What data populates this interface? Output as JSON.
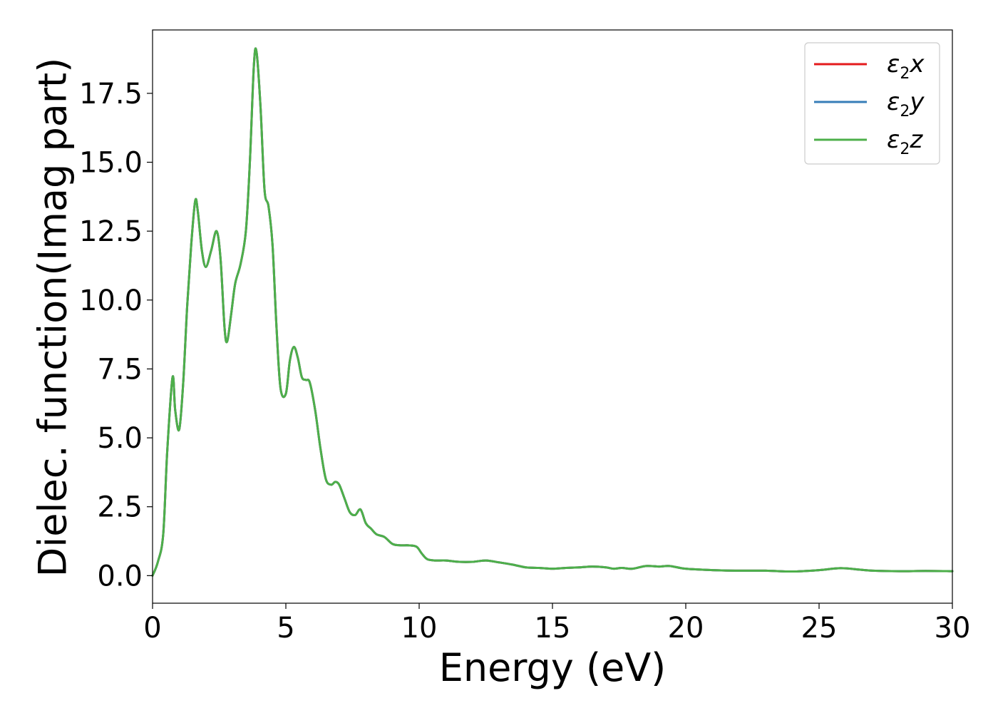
{
  "chart_data": {
    "type": "line",
    "title": "",
    "xlabel": "Energy (eV)",
    "ylabel": "Dielec. function(Imag part)",
    "xlim": [
      0,
      30
    ],
    "ylim": [
      -1.0,
      19.8
    ],
    "xticks": [
      0,
      5,
      10,
      15,
      20,
      25,
      30
    ],
    "xtick_labels": [
      "0",
      "5",
      "10",
      "15",
      "20",
      "25",
      "30"
    ],
    "yticks": [
      0,
      2.5,
      5,
      7.5,
      10,
      12.5,
      15,
      17.5
    ],
    "ytick_labels": [
      "0.0",
      "2.5",
      "5.0",
      "7.5",
      "10.0",
      "12.5",
      "15.0",
      "17.5"
    ],
    "grid": false,
    "legend_position": "top-right",
    "series": [
      {
        "name": "ε2x",
        "label_main": "ε",
        "label_sub": "2",
        "label_suffix": "x",
        "color": "#e41a1c",
        "x": [
          0,
          0.2,
          0.4,
          0.55,
          0.75,
          0.85,
          1.0,
          1.15,
          1.3,
          1.45,
          1.6,
          1.7,
          1.85,
          2.0,
          2.2,
          2.4,
          2.55,
          2.7,
          2.8,
          2.95,
          3.1,
          3.3,
          3.5,
          3.65,
          3.8,
          3.9,
          4.05,
          4.2,
          4.35,
          4.5,
          4.65,
          4.8,
          5.0,
          5.15,
          5.3,
          5.45,
          5.6,
          5.75,
          5.9,
          6.1,
          6.3,
          6.5,
          6.7,
          6.85,
          7.0,
          7.2,
          7.4,
          7.6,
          7.8,
          8.0,
          8.2,
          8.4,
          8.7,
          9.0,
          9.3,
          9.6,
          9.9,
          10.1,
          10.3,
          10.6,
          11.0,
          11.5,
          12.0,
          12.5,
          13.0,
          13.5,
          14.0,
          14.5,
          15.0,
          15.5,
          16.0,
          16.5,
          17.0,
          17.3,
          17.6,
          18.0,
          18.5,
          19.0,
          19.4,
          20.0,
          21.0,
          22.0,
          23.0,
          24.0,
          25.0,
          25.8,
          26.5,
          27.0,
          28.0,
          29.0,
          30.0
        ],
        "y": [
          0.0,
          0.5,
          1.5,
          4.5,
          7.2,
          6.0,
          5.3,
          7.0,
          9.8,
          12.0,
          13.6,
          13.2,
          11.8,
          11.2,
          11.8,
          12.5,
          11.5,
          9.0,
          8.5,
          9.5,
          10.6,
          11.3,
          12.5,
          15.0,
          18.5,
          19.0,
          17.0,
          14.0,
          13.4,
          12.0,
          9.0,
          6.8,
          6.6,
          7.8,
          8.3,
          7.9,
          7.2,
          7.1,
          7.0,
          6.0,
          4.6,
          3.5,
          3.3,
          3.4,
          3.3,
          2.8,
          2.3,
          2.2,
          2.4,
          1.9,
          1.7,
          1.5,
          1.4,
          1.15,
          1.1,
          1.1,
          1.05,
          0.8,
          0.6,
          0.55,
          0.55,
          0.5,
          0.5,
          0.55,
          0.48,
          0.4,
          0.3,
          0.28,
          0.25,
          0.28,
          0.3,
          0.33,
          0.3,
          0.25,
          0.28,
          0.25,
          0.35,
          0.33,
          0.35,
          0.25,
          0.2,
          0.18,
          0.18,
          0.15,
          0.2,
          0.27,
          0.22,
          0.18,
          0.16,
          0.17,
          0.16
        ]
      },
      {
        "name": "ε2y",
        "label_main": "ε",
        "label_sub": "2",
        "label_suffix": "y",
        "color": "#377eb8",
        "x": [
          0,
          0.2,
          0.4,
          0.55,
          0.75,
          0.85,
          1.0,
          1.15,
          1.3,
          1.45,
          1.6,
          1.7,
          1.85,
          2.0,
          2.2,
          2.4,
          2.55,
          2.7,
          2.8,
          2.95,
          3.1,
          3.3,
          3.5,
          3.65,
          3.8,
          3.9,
          4.05,
          4.2,
          4.35,
          4.5,
          4.65,
          4.8,
          5.0,
          5.15,
          5.3,
          5.45,
          5.6,
          5.75,
          5.9,
          6.1,
          6.3,
          6.5,
          6.7,
          6.85,
          7.0,
          7.2,
          7.4,
          7.6,
          7.8,
          8.0,
          8.2,
          8.4,
          8.7,
          9.0,
          9.3,
          9.6,
          9.9,
          10.1,
          10.3,
          10.6,
          11.0,
          11.5,
          12.0,
          12.5,
          13.0,
          13.5,
          14.0,
          14.5,
          15.0,
          15.5,
          16.0,
          16.5,
          17.0,
          17.3,
          17.6,
          18.0,
          18.5,
          19.0,
          19.4,
          20.0,
          21.0,
          22.0,
          23.0,
          24.0,
          25.0,
          25.8,
          26.5,
          27.0,
          28.0,
          29.0,
          30.0
        ],
        "y": [
          0.0,
          0.5,
          1.5,
          4.5,
          7.2,
          6.0,
          5.3,
          7.0,
          9.8,
          12.0,
          13.6,
          13.2,
          11.8,
          11.2,
          11.8,
          12.5,
          11.5,
          9.0,
          8.5,
          9.5,
          10.6,
          11.3,
          12.5,
          15.0,
          18.5,
          19.0,
          17.0,
          14.0,
          13.4,
          12.0,
          9.0,
          6.8,
          6.6,
          7.8,
          8.3,
          7.9,
          7.2,
          7.1,
          7.0,
          6.0,
          4.6,
          3.5,
          3.3,
          3.4,
          3.3,
          2.8,
          2.3,
          2.2,
          2.4,
          1.9,
          1.7,
          1.5,
          1.4,
          1.15,
          1.1,
          1.1,
          1.05,
          0.8,
          0.6,
          0.55,
          0.55,
          0.5,
          0.5,
          0.55,
          0.48,
          0.4,
          0.3,
          0.28,
          0.25,
          0.28,
          0.3,
          0.33,
          0.3,
          0.25,
          0.28,
          0.25,
          0.35,
          0.33,
          0.35,
          0.25,
          0.2,
          0.18,
          0.18,
          0.15,
          0.2,
          0.27,
          0.22,
          0.18,
          0.16,
          0.17,
          0.16
        ]
      },
      {
        "name": "ε2z",
        "label_main": "ε",
        "label_sub": "2",
        "label_suffix": "z",
        "color": "#4daf4a",
        "x": [
          0,
          0.2,
          0.4,
          0.55,
          0.75,
          0.85,
          1.0,
          1.15,
          1.3,
          1.45,
          1.6,
          1.7,
          1.85,
          2.0,
          2.2,
          2.4,
          2.55,
          2.7,
          2.8,
          2.95,
          3.1,
          3.3,
          3.5,
          3.65,
          3.8,
          3.9,
          4.05,
          4.2,
          4.35,
          4.5,
          4.65,
          4.8,
          5.0,
          5.15,
          5.3,
          5.45,
          5.6,
          5.75,
          5.9,
          6.1,
          6.3,
          6.5,
          6.7,
          6.85,
          7.0,
          7.2,
          7.4,
          7.6,
          7.8,
          8.0,
          8.2,
          8.4,
          8.7,
          9.0,
          9.3,
          9.6,
          9.9,
          10.1,
          10.3,
          10.6,
          11.0,
          11.5,
          12.0,
          12.5,
          13.0,
          13.5,
          14.0,
          14.5,
          15.0,
          15.5,
          16.0,
          16.5,
          17.0,
          17.3,
          17.6,
          18.0,
          18.5,
          19.0,
          19.4,
          20.0,
          21.0,
          22.0,
          23.0,
          24.0,
          25.0,
          25.8,
          26.5,
          27.0,
          28.0,
          29.0,
          30.0
        ],
        "y": [
          0.0,
          0.5,
          1.5,
          4.5,
          7.2,
          6.0,
          5.3,
          7.0,
          9.8,
          12.0,
          13.6,
          13.2,
          11.8,
          11.2,
          11.8,
          12.5,
          11.5,
          9.0,
          8.5,
          9.5,
          10.6,
          11.3,
          12.5,
          15.0,
          18.5,
          19.0,
          17.0,
          14.0,
          13.4,
          12.0,
          9.0,
          6.8,
          6.6,
          7.8,
          8.3,
          7.9,
          7.2,
          7.1,
          7.0,
          6.0,
          4.6,
          3.5,
          3.3,
          3.4,
          3.3,
          2.8,
          2.3,
          2.2,
          2.4,
          1.9,
          1.7,
          1.5,
          1.4,
          1.15,
          1.1,
          1.1,
          1.05,
          0.8,
          0.6,
          0.55,
          0.55,
          0.5,
          0.5,
          0.55,
          0.48,
          0.4,
          0.3,
          0.28,
          0.25,
          0.28,
          0.3,
          0.33,
          0.3,
          0.25,
          0.28,
          0.25,
          0.35,
          0.33,
          0.35,
          0.25,
          0.2,
          0.18,
          0.18,
          0.15,
          0.2,
          0.27,
          0.22,
          0.18,
          0.16,
          0.17,
          0.16
        ]
      }
    ]
  }
}
